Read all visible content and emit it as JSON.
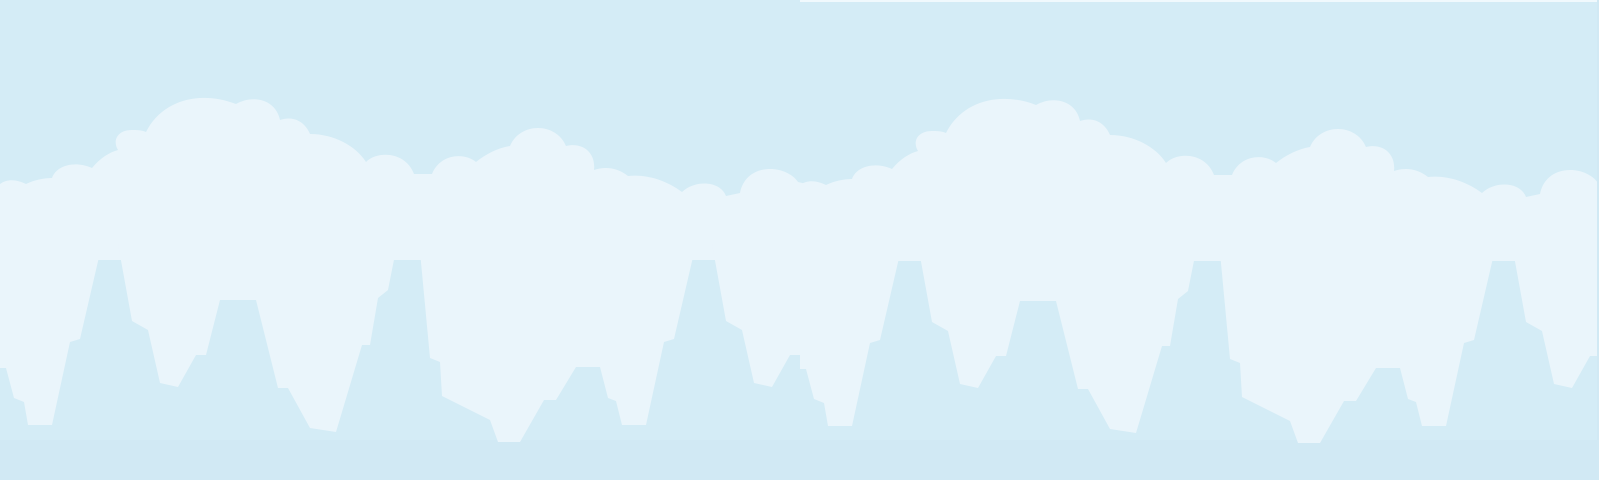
{
  "scene": {
    "kind": "parallax-background",
    "layers": [
      {
        "name": "sky",
        "color": "#d4ecf6"
      },
      {
        "name": "cloud-band",
        "color": "#eaf5fb"
      },
      {
        "name": "city-skyline",
        "color": "#eaf5fb"
      },
      {
        "name": "ground",
        "color": "#d1e9f4"
      }
    ]
  }
}
